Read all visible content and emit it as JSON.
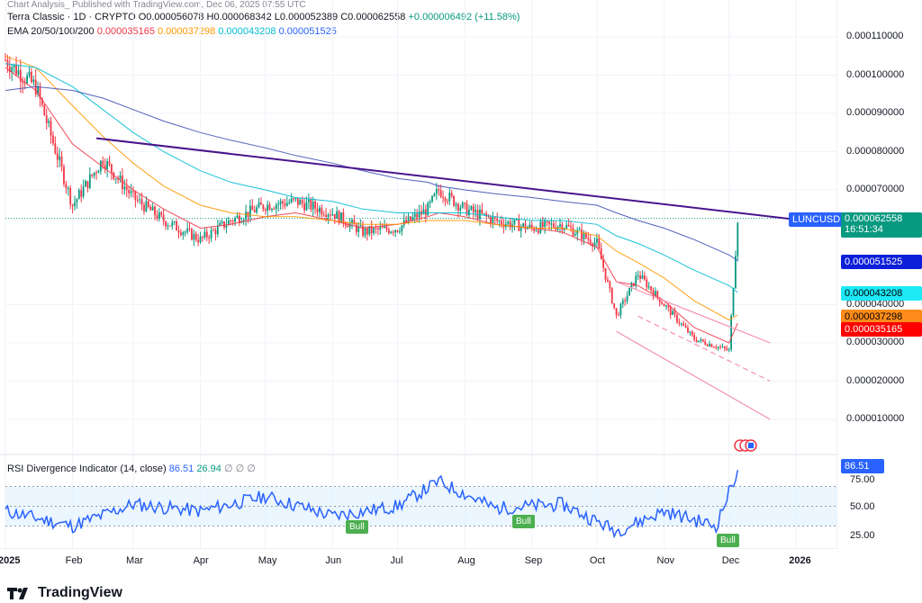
{
  "header": {
    "watermark_line": "Chart Analysis_ Published with TradingView.com, Dec 06, 2025 07:55 UTC",
    "symbol_line": "Terra Classic · 1D · CRYPTO",
    "ohlc": {
      "o": "O0.000056078",
      "h": "H0.000068342",
      "l": "L0.000052389",
      "c": "C0.000062558",
      "chg": "+0.000006492 (+11.58%)"
    },
    "ema_label": "EMA 20/50/100/200",
    "ema_values": [
      {
        "value": "0.000035165",
        "color": "#f23645"
      },
      {
        "value": "0.000037298",
        "color": "#ff9800"
      },
      {
        "value": "0.000043208",
        "color": "#00bcd4"
      },
      {
        "value": "0.000051525",
        "color": "#2962ff"
      }
    ]
  },
  "price_axis": {
    "ticks": [
      "0.000110000",
      "0.000100000",
      "0.000090000",
      "0.000080000",
      "0.000070000",
      "0.000040000",
      "0.000030000",
      "0.000020000",
      "0.000010000"
    ]
  },
  "price_tags": {
    "symbol": "LUNCUSD",
    "last": "0.000062558",
    "countdown": "16:51:34",
    "ema200": "0.000051525",
    "ema100": "0.000043208",
    "ema50": "0.000037298",
    "ema20": "0.000035165"
  },
  "rsi": {
    "label": "RSI Divergence Indicator (14, close)",
    "value1": "86.51",
    "value2": "26.94",
    "markers": "∅ ∅ ∅",
    "tag": "86.51",
    "ticks": [
      "75.00",
      "50.00",
      "25.00"
    ],
    "bull_labels": [
      "Bull",
      "Bull",
      "Bull"
    ]
  },
  "time_axis": [
    "2025",
    "Feb",
    "Mar",
    "Apr",
    "May",
    "Jun",
    "Jul",
    "Aug",
    "Sep",
    "Oct",
    "Nov",
    "Dec",
    "2026"
  ],
  "footer": {
    "brand": "TradingView"
  },
  "colors": {
    "up": "#089981",
    "down": "#f23645",
    "trend": "#4a148c",
    "ema20": "#f23645",
    "ema50": "#ff9800",
    "ema100": "#00bcd4",
    "ema200": "#3f51b5",
    "rsi": "#2962ff"
  },
  "chart_data": {
    "type": "line",
    "title": "Terra Classic · 1D · CRYPTO",
    "x_range": [
      "2025-01-01",
      "2026-01-20"
    ],
    "y_range": [
      5e-06,
      0.000116
    ],
    "x": [
      "2025-01-01",
      "2025-01-15",
      "2025-02-01",
      "2025-02-15",
      "2025-03-01",
      "2025-03-15",
      "2025-04-01",
      "2025-04-15",
      "2025-05-01",
      "2025-05-15",
      "2025-06-01",
      "2025-06-15",
      "2025-07-01",
      "2025-07-15",
      "2025-07-20",
      "2025-08-01",
      "2025-08-15",
      "2025-09-01",
      "2025-09-15",
      "2025-10-01",
      "2025-10-10",
      "2025-10-20",
      "2025-11-01",
      "2025-11-15",
      "2025-12-01",
      "2025-12-05"
    ],
    "series": [
      {
        "name": "Price",
        "values": [
          0.000104,
          9.7e-05,
          6.6e-05,
          7.8e-05,
          6.8e-05,
          6.2e-05,
          5.7e-05,
          6.2e-05,
          6.6e-05,
          6.7e-05,
          6.4e-05,
          5.9e-05,
          6e-05,
          6.5e-05,
          7e-05,
          6.5e-05,
          6.2e-05,
          6e-05,
          6.1e-05,
          5.6e-05,
          3.7e-05,
          4.8e-05,
          4e-05,
          3.1e-05,
          2.8e-05,
          6.2558e-05
        ]
      },
      {
        "name": "EMA 20",
        "values": [
          0.000102,
          9.6e-05,
          8.2e-05,
          7.6e-05,
          7e-05,
          6.5e-05,
          6e-05,
          6.1e-05,
          6.3e-05,
          6.4e-05,
          6.2e-05,
          6e-05,
          6.1e-05,
          6.3e-05,
          6.4e-05,
          6.3e-05,
          6.1e-05,
          6e-05,
          5.9e-05,
          5.5e-05,
          4.6e-05,
          4.5e-05,
          4.1e-05,
          3.4e-05,
          3e-05,
          3.5165e-05
        ]
      },
      {
        "name": "EMA 50",
        "values": [
          0.000105,
          0.000102,
          9.2e-05,
          8.4e-05,
          7.7e-05,
          7.1e-05,
          6.6e-05,
          6.4e-05,
          6.3e-05,
          6.3e-05,
          6.2e-05,
          6.1e-05,
          6.1e-05,
          6.2e-05,
          6.2e-05,
          6.2e-05,
          6.1e-05,
          6e-05,
          6e-05,
          5.8e-05,
          5.4e-05,
          5.1e-05,
          4.7e-05,
          4.1e-05,
          3.6e-05,
          3.7298e-05
        ]
      },
      {
        "name": "EMA 100",
        "values": [
          0.000103,
          0.000102,
          9.7e-05,
          9.1e-05,
          8.5e-05,
          8e-05,
          7.5e-05,
          7.2e-05,
          7e-05,
          6.8e-05,
          6.7e-05,
          6.5e-05,
          6.4e-05,
          6.4e-05,
          6.4e-05,
          6.4e-05,
          6.3e-05,
          6.2e-05,
          6.2e-05,
          6.1e-05,
          5.8e-05,
          5.6e-05,
          5.3e-05,
          4.9e-05,
          4.5e-05,
          4.3208e-05
        ]
      },
      {
        "name": "EMA 200",
        "values": [
          9.6e-05,
          9.7e-05,
          9.6e-05,
          9.4e-05,
          9.1e-05,
          8.8e-05,
          8.5e-05,
          8.3e-05,
          8.1e-05,
          7.9e-05,
          7.7e-05,
          7.5e-05,
          7.3e-05,
          7.2e-05,
          7.1e-05,
          7e-05,
          6.9e-05,
          6.8e-05,
          6.7e-05,
          6.6e-05,
          6.4e-05,
          6.2e-05,
          6e-05,
          5.7e-05,
          5.3e-05,
          5.1525e-05
        ]
      }
    ],
    "trendline": {
      "from": [
        "2025-02-12",
        8.35e-05
      ],
      "to": [
        "2026-01-20",
        6.1e-05
      ]
    },
    "rsi": {
      "x": [
        "2025-01-01",
        "2025-02-01",
        "2025-03-01",
        "2025-04-01",
        "2025-05-01",
        "2025-06-01",
        "2025-07-01",
        "2025-07-20",
        "2025-08-15",
        "2025-09-15",
        "2025-10-10",
        "2025-11-01",
        "2025-11-25",
        "2025-12-05"
      ],
      "values": [
        45,
        30,
        52,
        45,
        60,
        40,
        50,
        75,
        48,
        52,
        25,
        45,
        30,
        86.51
      ],
      "ylim": [
        15,
        95
      ]
    }
  }
}
